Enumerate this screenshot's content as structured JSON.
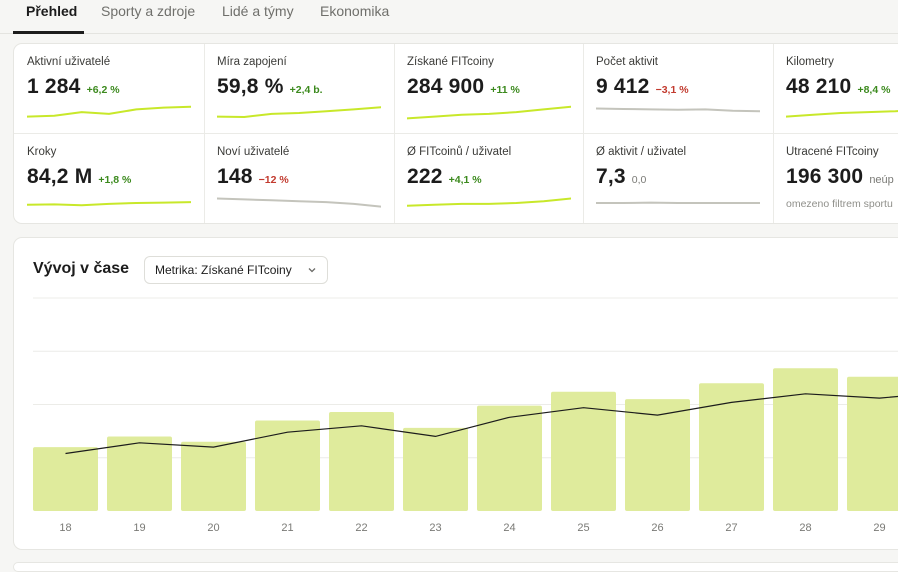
{
  "tabs": [
    {
      "label": "Přehled",
      "active": true
    },
    {
      "label": "Sporty a zdroje",
      "active": false
    },
    {
      "label": "Lidé a týmy",
      "active": false
    },
    {
      "label": "Ekonomika",
      "active": false
    }
  ],
  "colors": {
    "accent": "#c8e82a",
    "bar": "#dfeb9c",
    "neutral_spark": "#c4c4bc",
    "positive": "#3c8a1e",
    "negative": "#c23a2e"
  },
  "kpis": [
    {
      "label": "Aktivní uživatelé",
      "value": "1 284",
      "delta": "+6,2 %",
      "trend": "pos",
      "spark": [
        0.3,
        0.35,
        0.55,
        0.45,
        0.7,
        0.8,
        0.85
      ]
    },
    {
      "label": "Míra zapojení",
      "value": "59,8 %",
      "delta": "+2,4 b.",
      "trend": "pos",
      "spark": [
        0.3,
        0.28,
        0.45,
        0.5,
        0.6,
        0.7,
        0.82
      ]
    },
    {
      "label": "Získané FITcoiny",
      "value": "284 900",
      "delta": "+11 %",
      "trend": "pos",
      "spark": [
        0.2,
        0.3,
        0.4,
        0.45,
        0.55,
        0.7,
        0.85
      ]
    },
    {
      "label": "Počet aktivit",
      "value": "9 412",
      "delta": "−3,1 %",
      "trend": "neg",
      "spark": [
        0.75,
        0.72,
        0.7,
        0.68,
        0.7,
        0.62,
        0.6
      ]
    },
    {
      "label": "Kilometry",
      "value": "48 210",
      "delta": "+8,4 %",
      "trend": "pos",
      "spark": [
        0.3,
        0.4,
        0.5,
        0.55,
        0.6,
        0.7,
        0.8
      ]
    },
    {
      "label": "Kroky",
      "value": "84,2 M",
      "delta": "+1,8 %",
      "trend": "pos",
      "spark": [
        0.4,
        0.42,
        0.38,
        0.45,
        0.5,
        0.52,
        0.55
      ]
    },
    {
      "label": "Noví uživatelé",
      "value": "148",
      "delta": "−12 %",
      "trend": "neg",
      "spark": [
        0.75,
        0.7,
        0.65,
        0.6,
        0.55,
        0.45,
        0.3
      ]
    },
    {
      "label": "Ø FITcoinů / uživatel",
      "value": "222",
      "delta": "+4,1 %",
      "trend": "pos",
      "spark": [
        0.35,
        0.4,
        0.45,
        0.45,
        0.5,
        0.6,
        0.75
      ]
    },
    {
      "label": "Ø aktivit / uživatel",
      "value": "7,3",
      "delta": "0,0",
      "trend": "neu",
      "spark": [
        0.5,
        0.5,
        0.52,
        0.5,
        0.5,
        0.5,
        0.5
      ]
    },
    {
      "label": "Utracené FITcoiny",
      "value": "196 300",
      "delta": "neúp",
      "trend": "note",
      "note": "omezeno filtrem sportu",
      "spark": null
    }
  ],
  "chart_panel": {
    "title": "Vývoj v čase",
    "metric_select": "Metrika: Získané FITcoiny",
    "chevron_icon": "chevron-down-icon"
  },
  "chart_data": {
    "type": "bar",
    "categories": [
      "18",
      "19",
      "20",
      "21",
      "22",
      "23",
      "24",
      "25",
      "26",
      "27",
      "28",
      "29"
    ],
    "series": [
      {
        "type": "bar",
        "values": [
          30,
          35,
          32.5,
          42.5,
          46.5,
          39,
          49.5,
          56,
          52.5,
          60,
          67,
          63
        ]
      },
      {
        "type": "line",
        "values": [
          27,
          32,
          30,
          37,
          40,
          35,
          44,
          48.5,
          45,
          51,
          55,
          53
        ]
      }
    ],
    "ylim": [
      0,
      100
    ],
    "grid": true,
    "xlabel": "",
    "ylabel": ""
  }
}
